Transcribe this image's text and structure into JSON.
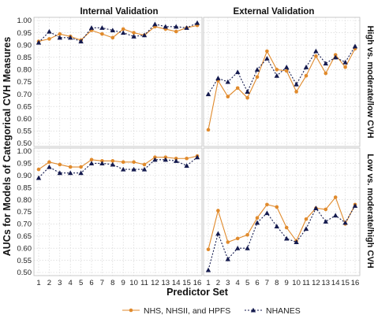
{
  "chart_data": {
    "type": "line",
    "facet_columns": [
      "Internal Validation",
      "External Validation"
    ],
    "facet_rows": [
      "High vs. moderate/low CVH",
      "Low vs. moderate/high CVH"
    ],
    "xlabel": "Predictor Set",
    "ylabel": "AUCs for Models of Categorical CVH Measures",
    "x": [
      1,
      2,
      3,
      4,
      5,
      6,
      7,
      8,
      9,
      10,
      11,
      12,
      13,
      14,
      15,
      16
    ],
    "x_ticks": [
      "1",
      "2",
      "3",
      "4",
      "5",
      "6",
      "7",
      "8",
      "9",
      "10",
      "11",
      "12",
      "13",
      "14",
      "15",
      "16"
    ],
    "ylim": [
      0.5,
      1.0
    ],
    "y_ticks": [
      "0.50",
      "0.55",
      "0.60",
      "0.65",
      "0.70",
      "0.75",
      "0.80",
      "0.85",
      "0.90",
      "0.95",
      "1.00"
    ],
    "grid": "dotted",
    "legend": {
      "placement": "bottom",
      "entries": [
        {
          "name": "NHS, NHSII, and HPFS",
          "color": "#E08A2C",
          "marker": "circle",
          "line": "solid"
        },
        {
          "name": "NHANES",
          "color": "#141A4E",
          "marker": "triangle",
          "line": "dashed"
        }
      ]
    },
    "panels": [
      {
        "row": "High vs. moderate/low CVH",
        "column": "Internal Validation",
        "series": [
          {
            "name": "NHS, NHSII, and HPFS",
            "values": [
              0.915,
              0.925,
              0.945,
              0.935,
              0.92,
              0.96,
              0.945,
              0.93,
              0.965,
              0.95,
              0.94,
              0.975,
              0.965,
              0.955,
              0.97,
              0.98
            ]
          },
          {
            "name": "NHANES",
            "values": [
              0.91,
              0.955,
              0.93,
              0.93,
              0.915,
              0.97,
              0.97,
              0.96,
              0.95,
              0.935,
              0.94,
              0.985,
              0.975,
              0.975,
              0.97,
              0.99
            ]
          }
        ]
      },
      {
        "row": "High vs. moderate/low CVH",
        "column": "External Validation",
        "series": [
          {
            "name": "NHS, NHSII, and HPFS",
            "values": [
              0.555,
              0.755,
              0.69,
              0.725,
              0.685,
              0.77,
              0.875,
              0.8,
              0.795,
              0.71,
              0.775,
              0.855,
              0.785,
              0.86,
              0.81,
              0.885
            ]
          },
          {
            "name": "NHANES",
            "values": [
              0.7,
              0.765,
              0.75,
              0.79,
              0.71,
              0.8,
              0.845,
              0.775,
              0.81,
              0.74,
              0.81,
              0.875,
              0.825,
              0.85,
              0.83,
              0.895
            ]
          }
        ]
      },
      {
        "row": "Low vs. moderate/high CVH",
        "column": "Internal Validation",
        "series": [
          {
            "name": "NHS, NHSII, and HPFS",
            "values": [
              0.925,
              0.955,
              0.945,
              0.935,
              0.935,
              0.965,
              0.96,
              0.96,
              0.955,
              0.955,
              0.945,
              0.975,
              0.975,
              0.97,
              0.97,
              0.98
            ]
          },
          {
            "name": "NHANES",
            "values": [
              0.89,
              0.935,
              0.91,
              0.91,
              0.91,
              0.95,
              0.95,
              0.945,
              0.925,
              0.925,
              0.925,
              0.965,
              0.965,
              0.96,
              0.94,
              0.975
            ]
          }
        ]
      },
      {
        "row": "Low vs. moderate/high CVH",
        "column": "External Validation",
        "series": [
          {
            "name": "NHS, NHSII, and HPFS",
            "values": [
              0.595,
              0.755,
              0.625,
              0.64,
              0.655,
              0.725,
              0.78,
              0.77,
              0.685,
              0.63,
              0.72,
              0.765,
              0.76,
              0.81,
              0.7,
              0.78
            ]
          },
          {
            "name": "NHANES",
            "values": [
              0.51,
              0.66,
              0.555,
              0.6,
              0.6,
              0.705,
              0.745,
              0.69,
              0.64,
              0.625,
              0.68,
              0.765,
              0.71,
              0.735,
              0.705,
              0.775
            ]
          }
        ]
      }
    ]
  }
}
